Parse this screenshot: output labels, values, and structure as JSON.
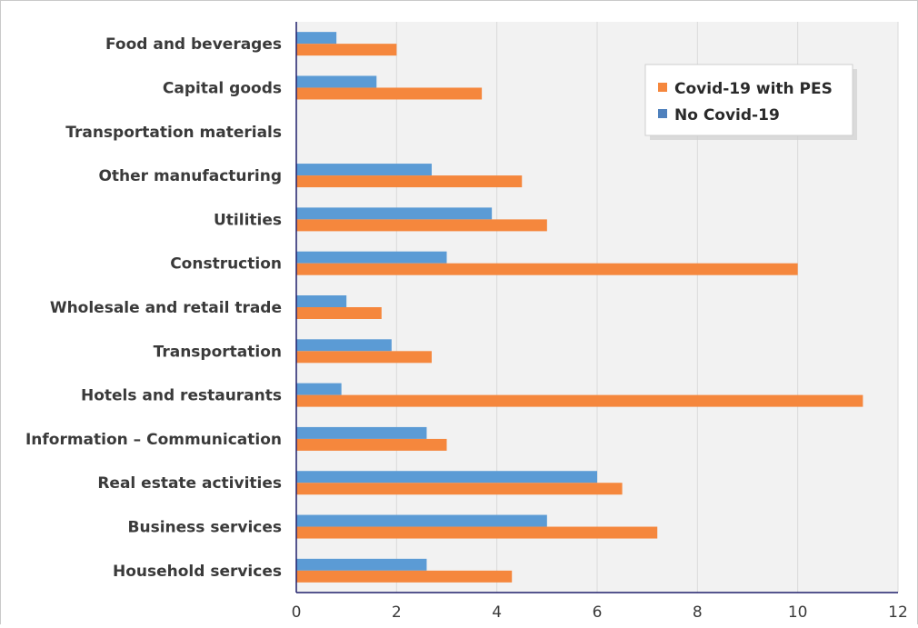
{
  "chart_data": {
    "type": "bar",
    "orientation": "horizontal",
    "categories": [
      "Food and beverages",
      "Capital goods",
      "Transportation materials",
      "Other manufacturing",
      "Utilities",
      "Construction",
      "Wholesale and retail trade",
      "Transportation",
      "Hotels and restaurants",
      "Information – Communication",
      "Real estate activities",
      "Business services",
      "Household services"
    ],
    "series": [
      {
        "name": "No Covid-19",
        "color": "#5b9bd5",
        "values": [
          0.8,
          1.6,
          0,
          2.7,
          3.9,
          3.0,
          1.0,
          1.9,
          0.9,
          2.6,
          6.0,
          5.0,
          2.6
        ]
      },
      {
        "name": "Covid-19 with PES",
        "color": "#f5873d",
        "values": [
          2.0,
          3.7,
          0,
          4.5,
          5.0,
          10.0,
          1.7,
          2.7,
          11.3,
          3.0,
          6.5,
          7.2,
          4.3
        ]
      }
    ],
    "xlim": [
      0,
      12
    ],
    "xticks": [
      "0",
      "2",
      "4",
      "6",
      "8",
      "10",
      "12"
    ],
    "title": "",
    "xlabel": "",
    "ylabel": "",
    "grid": "vertical",
    "legend": {
      "position": "top-right",
      "entries": [
        {
          "label": "Covid-19 with PES",
          "color": "#f5873d"
        },
        {
          "label": "No Covid-19",
          "color": "#4f81bd"
        }
      ]
    }
  }
}
